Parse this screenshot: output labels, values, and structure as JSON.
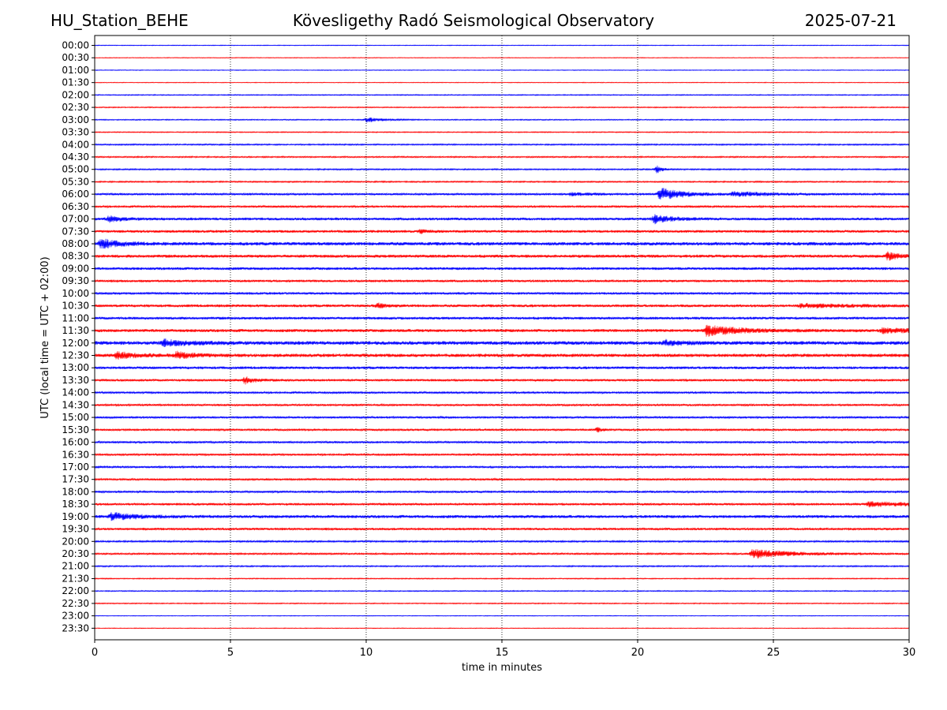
{
  "header": {
    "station": "HU_Station_BEHE",
    "observatory": "Kövesligethy Radó Seismological Observatory",
    "date": "2025-07-21"
  },
  "chart_data": {
    "type": "line",
    "xlabel": "time in minutes",
    "ylabel": "UTC (local time = UTC + 02:00)",
    "xlim": [
      0,
      30
    ],
    "xticks": [
      "0",
      "5",
      "10",
      "15",
      "20",
      "25",
      "30"
    ],
    "grid": "vertical dotted lines every 5 minutes",
    "colors": {
      "even_rows": "#0000ff",
      "odd_rows": "#ff0000"
    },
    "rows": [
      "00:00",
      "00:30",
      "01:00",
      "01:30",
      "02:00",
      "02:30",
      "03:00",
      "03:30",
      "04:00",
      "04:30",
      "05:00",
      "05:30",
      "06:00",
      "06:30",
      "07:00",
      "07:30",
      "08:00",
      "08:30",
      "09:00",
      "09:30",
      "10:00",
      "10:30",
      "11:00",
      "11:30",
      "12:00",
      "12:30",
      "13:00",
      "13:30",
      "14:00",
      "14:30",
      "15:00",
      "15:30",
      "16:00",
      "16:30",
      "17:00",
      "17:30",
      "18:00",
      "18:30",
      "19:00",
      "19:30",
      "20:00",
      "20:30",
      "21:00",
      "21:30",
      "22:00",
      "22:30",
      "23:00",
      "23:30"
    ],
    "noise_level": [
      0.2,
      0.2,
      0.2,
      0.2,
      0.3,
      0.3,
      0.3,
      0.3,
      0.4,
      0.4,
      0.4,
      0.4,
      0.6,
      0.6,
      0.8,
      0.8,
      1.0,
      0.9,
      0.8,
      0.7,
      0.7,
      0.8,
      0.8,
      0.9,
      1.1,
      1.0,
      0.8,
      0.7,
      0.6,
      0.6,
      0.6,
      0.6,
      0.6,
      0.6,
      0.6,
      0.6,
      0.6,
      0.7,
      0.9,
      0.7,
      0.5,
      0.5,
      0.4,
      0.3,
      0.3,
      0.3,
      0.2,
      0.2
    ],
    "events": [
      {
        "row": "03:00",
        "minute": 10.0,
        "amplitude": 1.4,
        "duration_min": 1.0
      },
      {
        "row": "05:00",
        "minute": 20.7,
        "amplitude": 2.5,
        "duration_min": 0.3
      },
      {
        "row": "06:00",
        "minute": 20.8,
        "amplitude": 3.5,
        "duration_min": 1.5
      },
      {
        "row": "06:00",
        "minute": 23.5,
        "amplitude": 1.2,
        "duration_min": 2.5
      },
      {
        "row": "06:00",
        "minute": 17.5,
        "amplitude": 0.8,
        "duration_min": 1.5
      },
      {
        "row": "07:00",
        "minute": 20.6,
        "amplitude": 2.5,
        "duration_min": 1.0
      },
      {
        "row": "07:00",
        "minute": 0.5,
        "amplitude": 1.6,
        "duration_min": 0.8
      },
      {
        "row": "08:00",
        "minute": 0.2,
        "amplitude": 2.8,
        "duration_min": 1.0
      },
      {
        "row": "08:30",
        "minute": 29.2,
        "amplitude": 2.5,
        "duration_min": 0.6
      },
      {
        "row": "07:30",
        "minute": 12.0,
        "amplitude": 1.0,
        "duration_min": 0.4
      },
      {
        "row": "10:30",
        "minute": 10.4,
        "amplitude": 1.4,
        "duration_min": 0.5
      },
      {
        "row": "10:30",
        "minute": 26.0,
        "amplitude": 1.0,
        "duration_min": 3.0
      },
      {
        "row": "11:30",
        "minute": 22.5,
        "amplitude": 3.0,
        "duration_min": 2.0
      },
      {
        "row": "11:30",
        "minute": 29.0,
        "amplitude": 1.2,
        "duration_min": 2.0
      },
      {
        "row": "12:00",
        "minute": 2.5,
        "amplitude": 1.6,
        "duration_min": 1.5
      },
      {
        "row": "12:00",
        "minute": 21.0,
        "amplitude": 1.4,
        "duration_min": 1.0
      },
      {
        "row": "12:30",
        "minute": 0.8,
        "amplitude": 1.8,
        "duration_min": 1.2
      },
      {
        "row": "12:30",
        "minute": 3.0,
        "amplitude": 2.0,
        "duration_min": 1.0
      },
      {
        "row": "13:30",
        "minute": 5.5,
        "amplitude": 2.2,
        "duration_min": 0.6
      },
      {
        "row": "15:30",
        "minute": 18.5,
        "amplitude": 1.2,
        "duration_min": 0.3
      },
      {
        "row": "18:30",
        "minute": 28.5,
        "amplitude": 1.2,
        "duration_min": 3.0
      },
      {
        "row": "19:00",
        "minute": 0.6,
        "amplitude": 2.0,
        "duration_min": 1.5
      },
      {
        "row": "20:30",
        "minute": 24.2,
        "amplitude": 2.6,
        "duration_min": 2.5
      }
    ]
  }
}
